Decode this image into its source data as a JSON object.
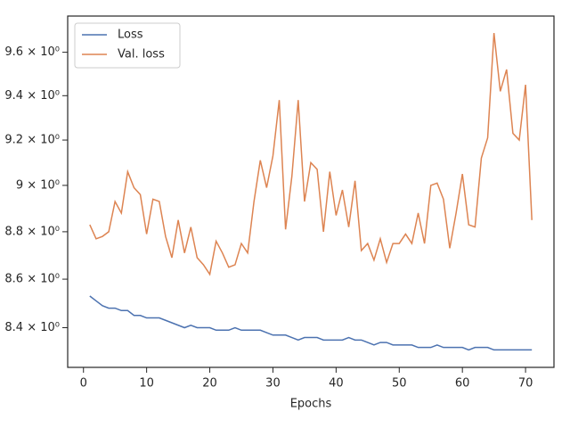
{
  "chart_data": {
    "type": "line",
    "xlabel": "Epochs",
    "x": [
      1,
      2,
      3,
      4,
      5,
      6,
      7,
      8,
      9,
      10,
      11,
      12,
      13,
      14,
      15,
      16,
      17,
      18,
      19,
      20,
      21,
      22,
      23,
      24,
      25,
      26,
      27,
      28,
      29,
      30,
      31,
      32,
      33,
      34,
      35,
      36,
      37,
      38,
      39,
      40,
      41,
      42,
      43,
      44,
      45,
      46,
      47,
      48,
      49,
      50,
      51,
      52,
      53,
      54,
      55,
      56,
      57,
      58,
      59,
      60,
      61,
      62,
      63,
      64,
      65,
      66,
      67,
      68,
      69,
      70,
      71
    ],
    "series": [
      {
        "name": "Loss",
        "color": "#4c72b0",
        "values": [
          8.53,
          8.51,
          8.49,
          8.48,
          8.48,
          8.47,
          8.47,
          8.45,
          8.45,
          8.44,
          8.44,
          8.44,
          8.43,
          8.42,
          8.41,
          8.4,
          8.41,
          8.4,
          8.4,
          8.4,
          8.39,
          8.39,
          8.39,
          8.4,
          8.39,
          8.39,
          8.39,
          8.39,
          8.38,
          8.37,
          8.37,
          8.37,
          8.36,
          8.35,
          8.36,
          8.36,
          8.36,
          8.35,
          8.35,
          8.35,
          8.35,
          8.36,
          8.35,
          8.35,
          8.34,
          8.33,
          8.34,
          8.34,
          8.33,
          8.33,
          8.33,
          8.33,
          8.32,
          8.32,
          8.32,
          8.33,
          8.32,
          8.32,
          8.32,
          8.32,
          8.31,
          8.32,
          8.32,
          8.32,
          8.31,
          8.31,
          8.31,
          8.31,
          8.31,
          8.31,
          8.31
        ]
      },
      {
        "name": "Val. loss",
        "color": "#dd8452",
        "values": [
          8.83,
          8.77,
          8.78,
          8.8,
          8.93,
          8.88,
          9.06,
          8.99,
          8.96,
          8.79,
          8.94,
          8.93,
          8.78,
          8.69,
          8.85,
          8.71,
          8.82,
          8.69,
          8.66,
          8.62,
          8.76,
          8.71,
          8.65,
          8.66,
          8.75,
          8.71,
          8.93,
          9.11,
          8.99,
          9.13,
          9.38,
          8.81,
          9.04,
          9.38,
          8.93,
          9.1,
          9.07,
          8.8,
          9.06,
          8.87,
          8.98,
          8.82,
          9.02,
          8.72,
          8.75,
          8.68,
          8.77,
          8.67,
          8.75,
          8.75,
          8.79,
          8.75,
          8.88,
          8.75,
          9.0,
          9.01,
          8.94,
          8.73,
          8.88,
          9.05,
          8.83,
          8.82,
          9.12,
          9.21,
          9.69,
          9.42,
          9.52,
          9.23,
          9.2,
          9.45,
          8.85
        ]
      }
    ],
    "xlim": [
      -2.5,
      74.5
    ],
    "xticks": [
      0,
      10,
      20,
      30,
      40,
      50,
      60,
      70
    ],
    "ylim": [
      8.24,
      9.77
    ],
    "log_y": true,
    "yticks": [
      {
        "value": 8.4,
        "label": "8.4 × 10⁰"
      },
      {
        "value": 8.6,
        "label": "8.6 × 10⁰"
      },
      {
        "value": 8.8,
        "label": "8.8 × 10⁰"
      },
      {
        "value": 9.0,
        "label": "9 × 10⁰"
      },
      {
        "value": 9.2,
        "label": "9.2 × 10⁰"
      },
      {
        "value": 9.4,
        "label": "9.4 × 10⁰"
      },
      {
        "value": 9.6,
        "label": "9.6 × 10⁰"
      }
    ],
    "legend": "upper left"
  }
}
